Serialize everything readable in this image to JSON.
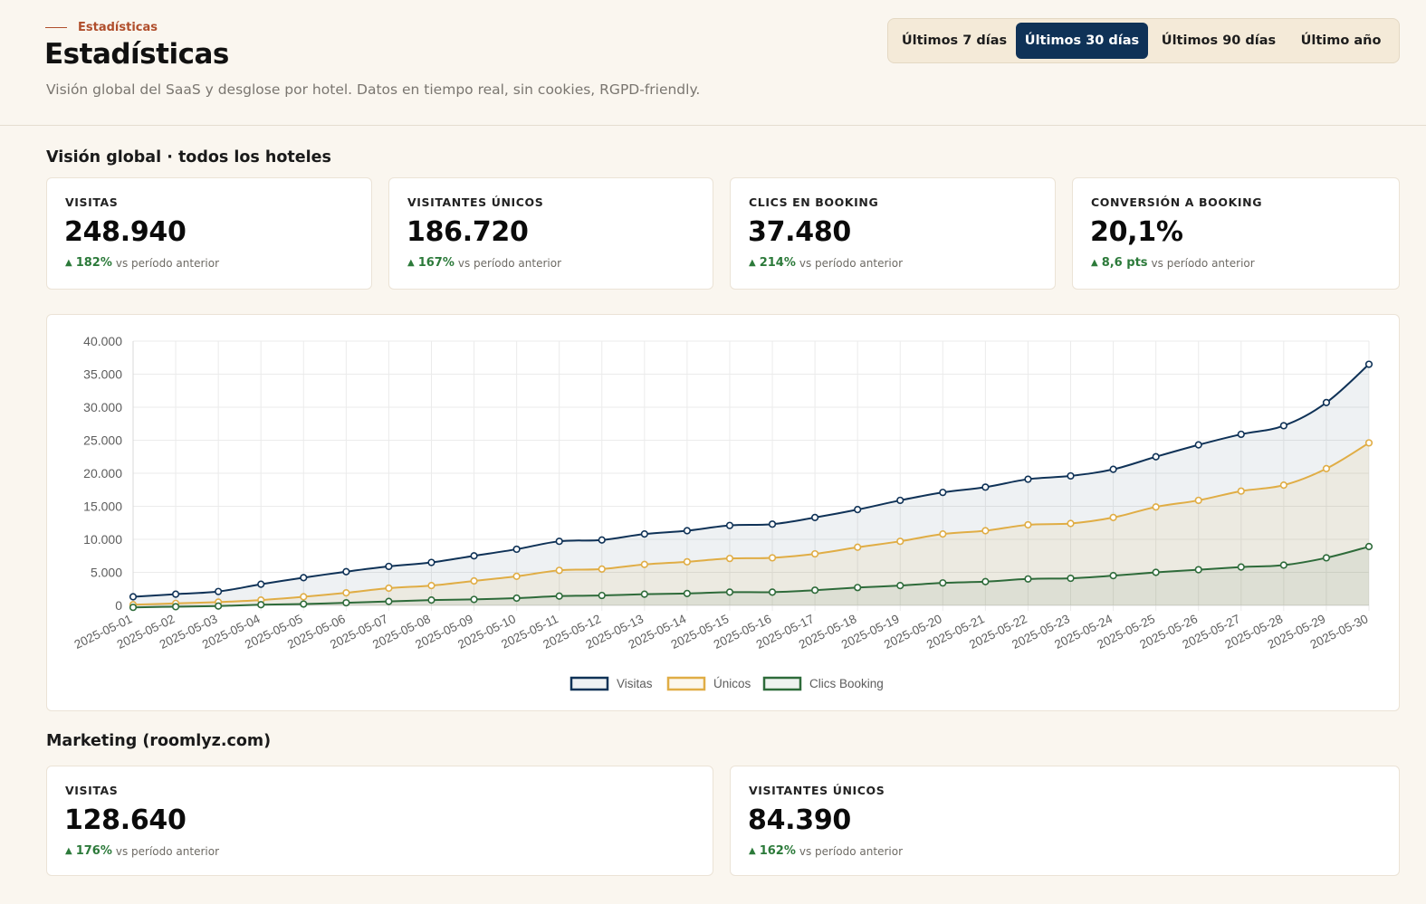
{
  "header": {
    "breadcrumb": "Estadísticas",
    "title": "Estadísticas",
    "subtitle": "Visión global del SaaS y desglose por hotel. Datos en tiempo real, sin cookies, RGPD-friendly."
  },
  "range_selector": {
    "options": [
      "Últimos 7 días",
      "Últimos 30 días",
      "Últimos 90 días",
      "Último año"
    ],
    "selected": "Últimos 30 días"
  },
  "global": {
    "section_title": "Visión global · todos los hoteles",
    "kpis": [
      {
        "label": "VISITAS",
        "value": "248.940",
        "delta": "182%",
        "delta_note": "vs período anterior"
      },
      {
        "label": "VISITANTES ÚNICOS",
        "value": "186.720",
        "delta": "167%",
        "delta_note": "vs período anterior"
      },
      {
        "label": "CLICS EN BOOKING",
        "value": "37.480",
        "delta": "214%",
        "delta_note": "vs período anterior"
      },
      {
        "label": "CONVERSIÓN A BOOKING",
        "value": "20,1%",
        "delta": "8,6 pts",
        "delta_note": "vs período anterior"
      }
    ]
  },
  "marketing": {
    "section_title": "Marketing (roomlyz.com)",
    "kpis": [
      {
        "label": "VISITAS",
        "value": "128.640",
        "delta": "176%",
        "delta_note": "vs período anterior"
      },
      {
        "label": "VISITANTES ÚNICOS",
        "value": "84.390",
        "delta": "162%",
        "delta_note": "vs período anterior"
      }
    ]
  },
  "colors": {
    "accent": "#0f3257",
    "positive": "#2c7a3a",
    "eyebrow": "#b04e2c",
    "background": "#faf6ef"
  },
  "chart_data": {
    "type": "line",
    "x": [
      "2025-05-01",
      "2025-05-02",
      "2025-05-03",
      "2025-05-04",
      "2025-05-05",
      "2025-05-06",
      "2025-05-07",
      "2025-05-08",
      "2025-05-09",
      "2025-05-10",
      "2025-05-11",
      "2025-05-12",
      "2025-05-13",
      "2025-05-14",
      "2025-05-15",
      "2025-05-16",
      "2025-05-17",
      "2025-05-18",
      "2025-05-19",
      "2025-05-20",
      "2025-05-21",
      "2025-05-22",
      "2025-05-23",
      "2025-05-24",
      "2025-05-25",
      "2025-05-26",
      "2025-05-27",
      "2025-05-28",
      "2025-05-29",
      "2025-05-30"
    ],
    "series": [
      {
        "name": "Visitas",
        "color": "#0f3257",
        "values": [
          1300,
          1700,
          2100,
          3200,
          4200,
          5100,
          5900,
          6500,
          7500,
          8500,
          9700,
          9900,
          10800,
          11300,
          12100,
          12300,
          13300,
          14500,
          15900,
          17100,
          17900,
          19100,
          19600,
          20600,
          22500,
          24300,
          25900,
          27200,
          30700,
          36500
        ]
      },
      {
        "name": "Únicos",
        "color": "#e0ad45",
        "values": [
          100,
          300,
          500,
          800,
          1300,
          1900,
          2600,
          3000,
          3700,
          4400,
          5300,
          5500,
          6200,
          6600,
          7100,
          7200,
          7800,
          8800,
          9700,
          10800,
          11300,
          12200,
          12400,
          13300,
          14900,
          15900,
          17300,
          18200,
          20700,
          24600
        ]
      },
      {
        "name": "Clics Booking",
        "color": "#2e6b3a",
        "values": [
          -300,
          -200,
          -100,
          100,
          200,
          400,
          600,
          800,
          900,
          1100,
          1400,
          1500,
          1700,
          1800,
          2000,
          2000,
          2300,
          2700,
          3000,
          3400,
          3600,
          4000,
          4100,
          4500,
          5000,
          5400,
          5800,
          6100,
          7200,
          8900
        ]
      }
    ],
    "ylim": [
      0,
      40000
    ],
    "yticks": [
      "0",
      "5.000",
      "10.000",
      "15.000",
      "20.000",
      "25.000",
      "30.000",
      "35.000",
      "40.000"
    ],
    "grid": true,
    "legend": "bottom"
  }
}
